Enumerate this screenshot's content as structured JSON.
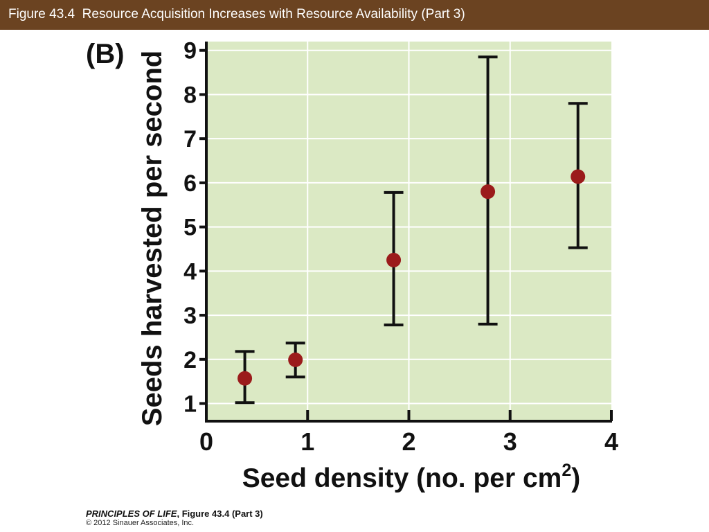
{
  "header": {
    "title": "Figure 43.4  Resource Acquisition Increases with Resource Availability (Part 3)"
  },
  "colors": {
    "header_bg": "#6b4321",
    "plot_bg": "#dbe9c4",
    "grid": "#ffffff",
    "point": "#9b1b1b",
    "axis": "#111111"
  },
  "chart_data": {
    "type": "scatter",
    "panel_label": "(B)",
    "xlabel_main": "Seed density (no. per cm",
    "xlabel_sup": "2",
    "xlabel_close": ")",
    "ylabel": "Seeds harvested per second",
    "xlim": [
      0,
      4
    ],
    "ylim": [
      0.6,
      9.2
    ],
    "xticks": [
      0,
      1,
      2,
      3,
      4
    ],
    "yticks": [
      1,
      2,
      3,
      4,
      5,
      6,
      7,
      8,
      9
    ],
    "grid": true,
    "error_bars": true,
    "points": [
      {
        "x": 0.38,
        "y": 1.57,
        "low": 1.02,
        "high": 2.18
      },
      {
        "x": 0.88,
        "y": 1.99,
        "low": 1.6,
        "high": 2.37
      },
      {
        "x": 1.85,
        "y": 4.25,
        "low": 2.78,
        "high": 5.78
      },
      {
        "x": 2.78,
        "y": 5.8,
        "low": 2.8,
        "high": 8.85
      },
      {
        "x": 3.67,
        "y": 6.14,
        "low": 4.53,
        "high": 7.8
      }
    ]
  },
  "caption": {
    "book_italic": "PRINCIPLES OF LIFE",
    "book_rest": ", Figure 43.4 (Part 3)",
    "copyright": "© 2012 Sinauer Associates, Inc."
  }
}
